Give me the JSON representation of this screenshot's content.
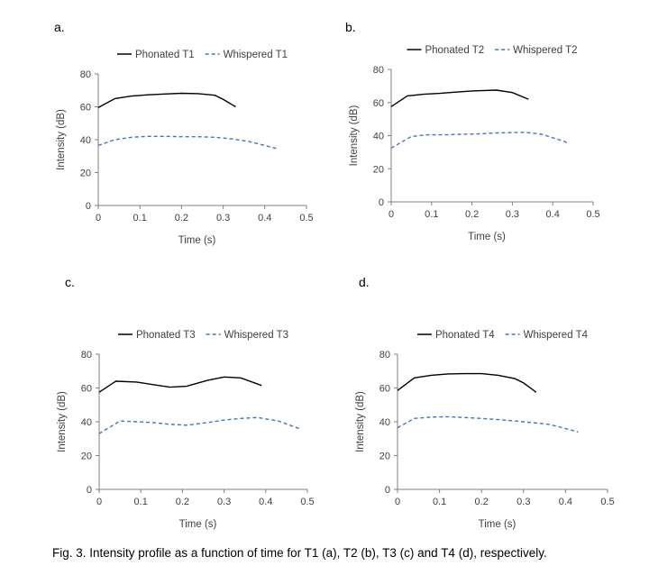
{
  "figure": {
    "panel_labels": [
      "a.",
      "b.",
      "c.",
      "d."
    ],
    "caption": "Fig. 3. Intensity profile as a function of time for T1 (a), T2 (b), T3 (c) and T4 (d), respectively."
  },
  "colors": {
    "phonated": "#000000",
    "whispered": "#4472c4",
    "axis": "#808080"
  },
  "chart_data": [
    {
      "type": "line",
      "xlabel": "Time (s)",
      "ylabel": "Intensity (dB)",
      "xlim": [
        0,
        0.5
      ],
      "ylim": [
        0,
        80
      ],
      "xticks": [
        "0",
        "0.1",
        "0.2",
        "0.3",
        "0.4",
        "0.5"
      ],
      "yticks": [
        "0",
        "20",
        "40",
        "60",
        "80"
      ],
      "legend": "top",
      "series": [
        {
          "name": "Phonated T1",
          "style": "solid",
          "x": [
            0,
            0.04,
            0.08,
            0.12,
            0.16,
            0.2,
            0.24,
            0.28,
            0.3,
            0.33
          ],
          "y": [
            59.5,
            65,
            66.5,
            67.3,
            67.8,
            68.2,
            68,
            67,
            64.5,
            60
          ]
        },
        {
          "name": "Whispered T1",
          "style": "dashed",
          "x": [
            0,
            0.04,
            0.08,
            0.12,
            0.16,
            0.2,
            0.24,
            0.28,
            0.32,
            0.36,
            0.4,
            0.43
          ],
          "y": [
            36.5,
            40,
            41.5,
            42,
            42,
            41.8,
            41.8,
            41.5,
            40.5,
            39,
            36.5,
            34.5
          ]
        }
      ]
    },
    {
      "type": "line",
      "xlabel": "Time (s)",
      "ylabel": "Intensity (dB)",
      "xlim": [
        0,
        0.5
      ],
      "ylim": [
        0,
        80
      ],
      "xticks": [
        "0",
        "0.1",
        "0.2",
        "0.3",
        "0.4",
        "0.5"
      ],
      "yticks": [
        "0",
        "20",
        "40",
        "60",
        "80"
      ],
      "legend": "top",
      "series": [
        {
          "name": "Phonated T2",
          "style": "solid",
          "x": [
            0,
            0.04,
            0.08,
            0.12,
            0.16,
            0.2,
            0.24,
            0.26,
            0.3,
            0.34
          ],
          "y": [
            57.5,
            64,
            65,
            65.5,
            66.3,
            67,
            67.3,
            67.5,
            66,
            62
          ]
        },
        {
          "name": "Whispered T2",
          "style": "dashed",
          "x": [
            0,
            0.05,
            0.09,
            0.13,
            0.17,
            0.21,
            0.25,
            0.29,
            0.33,
            0.37,
            0.41,
            0.44
          ],
          "y": [
            32.5,
            39.5,
            40.5,
            40.5,
            40.8,
            41,
            41.5,
            41.8,
            42,
            41,
            38,
            35.5
          ]
        }
      ]
    },
    {
      "type": "line",
      "xlabel": "Time (s)",
      "ylabel": "Intensity (dB)",
      "xlim": [
        0,
        0.5
      ],
      "ylim": [
        0,
        80
      ],
      "xticks": [
        "0",
        "0.1",
        "0.2",
        "0.3",
        "0.4",
        "0.5"
      ],
      "yticks": [
        "0",
        "20",
        "40",
        "60",
        "80"
      ],
      "legend": "top",
      "series": [
        {
          "name": "Phonated T3",
          "style": "solid",
          "x": [
            0,
            0.04,
            0.09,
            0.13,
            0.17,
            0.21,
            0.26,
            0.3,
            0.34,
            0.39
          ],
          "y": [
            57.5,
            64,
            63.5,
            62,
            60.5,
            61,
            64.5,
            66.5,
            66,
            61.5
          ]
        },
        {
          "name": "Whispered T3",
          "style": "dashed",
          "x": [
            0,
            0.05,
            0.09,
            0.13,
            0.17,
            0.21,
            0.26,
            0.3,
            0.34,
            0.38,
            0.43,
            0.48
          ],
          "y": [
            33,
            40.5,
            40,
            39.5,
            38.5,
            38,
            39.5,
            41,
            42,
            42.5,
            40.5,
            36
          ]
        }
      ]
    },
    {
      "type": "line",
      "xlabel": "Time (s)",
      "ylabel": "Intensity (dB)",
      "xlim": [
        0,
        0.5
      ],
      "ylim": [
        0,
        80
      ],
      "xticks": [
        "0",
        "0.1",
        "0.2",
        "0.3",
        "0.4",
        "0.5"
      ],
      "yticks": [
        "0",
        "20",
        "40",
        "60",
        "80"
      ],
      "legend": "top",
      "series": [
        {
          "name": "Phonated T4",
          "style": "solid",
          "x": [
            0,
            0.04,
            0.08,
            0.12,
            0.16,
            0.2,
            0.24,
            0.28,
            0.3,
            0.33
          ],
          "y": [
            58.5,
            66,
            67.5,
            68.3,
            68.5,
            68.5,
            67.5,
            65.5,
            63,
            57.5
          ]
        },
        {
          "name": "Whispered T4",
          "style": "dashed",
          "x": [
            0,
            0.04,
            0.08,
            0.12,
            0.16,
            0.2,
            0.24,
            0.28,
            0.32,
            0.36,
            0.4,
            0.43
          ],
          "y": [
            36.5,
            42,
            42.8,
            43,
            42.5,
            42,
            41.3,
            40.5,
            39.5,
            38.5,
            36,
            34
          ]
        }
      ]
    }
  ]
}
